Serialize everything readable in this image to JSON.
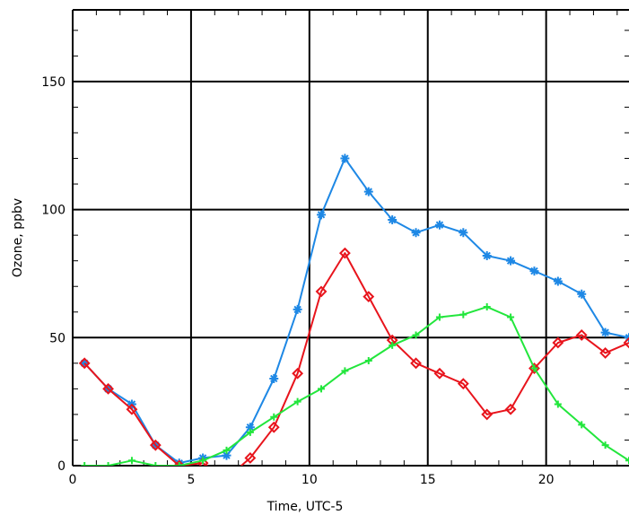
{
  "chart_data": {
    "type": "line",
    "xlabel": "Time, UTC-5",
    "ylabel": "Ozone, ppbv",
    "xlim": [
      0,
      23.5
    ],
    "ylim": [
      0,
      178
    ],
    "xticks": [
      0,
      5,
      10,
      15,
      20
    ],
    "xtick_labels": [
      "0",
      "5",
      "10",
      "15",
      "20"
    ],
    "yticks": [
      0,
      50,
      100,
      150
    ],
    "ytick_labels": [
      "0",
      "50",
      "100",
      "150"
    ],
    "grid": true,
    "series": [
      {
        "color": "#1e88e5",
        "marker": "asterisk",
        "x": [
          0.5,
          1.5,
          2.5,
          3.5,
          4.5,
          5.5,
          6.5,
          7.5,
          8.5,
          9.5,
          10.5,
          11.5,
          12.5,
          13.5,
          14.5,
          15.5,
          16.5,
          17.5,
          18.5,
          19.5,
          20.5,
          21.5,
          22.5,
          23.5
        ],
        "values": [
          40,
          30,
          24,
          8,
          1,
          3,
          4,
          15,
          34,
          61,
          98,
          120,
          107,
          96,
          91,
          94,
          91,
          82,
          80,
          76,
          72,
          67,
          52,
          50
        ]
      },
      {
        "color": "#e8141c",
        "marker": "diamond",
        "x": [
          0.5,
          1.5,
          2.5,
          3.5,
          4.5,
          5.5,
          6.5,
          7.5,
          8.5,
          9.5,
          10.5,
          11.5,
          12.5,
          13.5,
          14.5,
          15.5,
          16.5,
          17.5,
          18.5,
          19.5,
          20.5,
          21.5,
          22.5,
          23.5
        ],
        "values": [
          40,
          30,
          22,
          8,
          0,
          1,
          -5,
          3,
          15,
          36,
          68,
          83,
          66,
          49,
          40,
          36,
          32,
          20,
          22,
          38,
          48,
          51,
          44,
          48
        ]
      },
      {
        "color": "#22e63c",
        "marker": "plus",
        "x": [
          0.5,
          1.5,
          2.5,
          3.5,
          4.5,
          5.5,
          6.5,
          7.5,
          8.5,
          9.5,
          10.5,
          11.5,
          12.5,
          13.5,
          14.5,
          15.5,
          16.5,
          17.5,
          18.5,
          19.5,
          20.5,
          21.5,
          22.5,
          23.5
        ],
        "values": [
          0,
          0,
          2,
          0,
          0,
          2,
          6,
          13,
          19,
          25,
          30,
          37,
          41,
          47,
          51,
          58,
          59,
          62,
          58,
          38,
          24,
          16,
          8,
          2
        ]
      }
    ]
  }
}
